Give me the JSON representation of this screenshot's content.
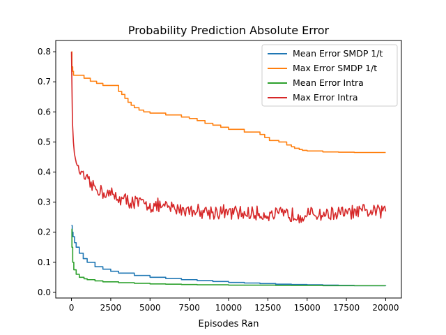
{
  "chart_data": {
    "type": "line",
    "title": "Probability Prediction Absolute Error",
    "xlabel": "Episodes Ran",
    "ylabel": "",
    "xlim": [
      -1000,
      21000
    ],
    "ylim": [
      -0.0189,
      0.8375
    ],
    "xticks": [
      0,
      2500,
      5000,
      7500,
      10000,
      12500,
      15000,
      17500,
      20000
    ],
    "yticks": [
      0.0,
      0.1,
      0.2,
      0.3,
      0.4,
      0.5,
      0.6,
      0.7,
      0.8
    ],
    "xtick_labels": [
      "0",
      "2500",
      "5000",
      "7500",
      "10000",
      "12500",
      "15000",
      "17500",
      "20000"
    ],
    "ytick_labels": [
      "0.0",
      "0.1",
      "0.2",
      "0.3",
      "0.4",
      "0.5",
      "0.6",
      "0.7",
      "0.8"
    ],
    "grid": false,
    "legend_position": "top-right",
    "series": [
      {
        "name": "Mean Error SMDP 1/t",
        "color": "#1f77b4",
        "style": "step",
        "x": [
          0,
          50,
          100,
          200,
          300,
          500,
          750,
          1000,
          1500,
          2000,
          2500,
          3000,
          4000,
          5000,
          6000,
          7000,
          8000,
          9000,
          10000,
          11000,
          12000,
          13000,
          14000,
          15000,
          16000,
          17000,
          18000,
          19000,
          20000
        ],
        "y": [
          0.222,
          0.2,
          0.185,
          0.165,
          0.15,
          0.13,
          0.112,
          0.1,
          0.085,
          0.077,
          0.07,
          0.064,
          0.056,
          0.05,
          0.046,
          0.042,
          0.039,
          0.036,
          0.033,
          0.031,
          0.029,
          0.027,
          0.026,
          0.025,
          0.024,
          0.023,
          0.022,
          0.022,
          0.021
        ]
      },
      {
        "name": "Max Error SMDP 1/t",
        "color": "#ff7f0e",
        "style": "step",
        "x": [
          0,
          30,
          80,
          130,
          800,
          1200,
          1600,
          2000,
          3000,
          3200,
          3400,
          3600,
          3800,
          4000,
          4300,
          4600,
          5000,
          6000,
          7000,
          7500,
          8000,
          8500,
          9000,
          9500,
          10000,
          11000,
          12000,
          12300,
          12600,
          13200,
          13700,
          14000,
          14200,
          14500,
          14700,
          15000,
          16000,
          17000,
          18000,
          19000,
          20000
        ],
        "y": [
          0.8,
          0.75,
          0.735,
          0.722,
          0.712,
          0.702,
          0.695,
          0.688,
          0.668,
          0.658,
          0.645,
          0.632,
          0.622,
          0.614,
          0.606,
          0.6,
          0.596,
          0.59,
          0.583,
          0.578,
          0.571,
          0.562,
          0.556,
          0.549,
          0.542,
          0.533,
          0.525,
          0.515,
          0.505,
          0.5,
          0.49,
          0.484,
          0.479,
          0.475,
          0.472,
          0.47,
          0.467,
          0.466,
          0.465,
          0.465,
          0.465
        ]
      },
      {
        "name": "Mean Error Intra",
        "color": "#2ca02c",
        "style": "step",
        "x": [
          0,
          30,
          80,
          150,
          300,
          500,
          800,
          1000,
          1500,
          2000,
          3000,
          4000,
          5000,
          6000,
          7000,
          8000,
          9000,
          10000,
          11000,
          12000,
          13000,
          14000,
          15000,
          16000,
          17000,
          18000,
          19000,
          20000
        ],
        "y": [
          0.21,
          0.15,
          0.1,
          0.075,
          0.06,
          0.05,
          0.045,
          0.042,
          0.038,
          0.035,
          0.032,
          0.03,
          0.028,
          0.027,
          0.026,
          0.025,
          0.025,
          0.024,
          0.024,
          0.024,
          0.023,
          0.023,
          0.023,
          0.022,
          0.022,
          0.022,
          0.022,
          0.022
        ]
      },
      {
        "name": "Max Error Intra",
        "color": "#d62728",
        "style": "noisy",
        "x": [
          0,
          30,
          60,
          100,
          150,
          200,
          300,
          400,
          500,
          700,
          1000,
          1300,
          1600,
          2000,
          2500,
          3000,
          3500,
          4000,
          5000,
          6000,
          7000,
          8000,
          9000,
          10000,
          11000,
          12000,
          13000,
          14000,
          15000,
          16000,
          17000,
          18000,
          19000,
          20000
        ],
        "y": [
          0.8,
          0.7,
          0.57,
          0.52,
          0.48,
          0.455,
          0.435,
          0.42,
          0.405,
          0.39,
          0.37,
          0.355,
          0.345,
          0.335,
          0.325,
          0.315,
          0.305,
          0.3,
          0.29,
          0.282,
          0.277,
          0.272,
          0.268,
          0.265,
          0.262,
          0.26,
          0.258,
          0.258,
          0.258,
          0.26,
          0.262,
          0.265,
          0.268,
          0.27
        ],
        "noise_amplitude": 0.022
      }
    ]
  }
}
